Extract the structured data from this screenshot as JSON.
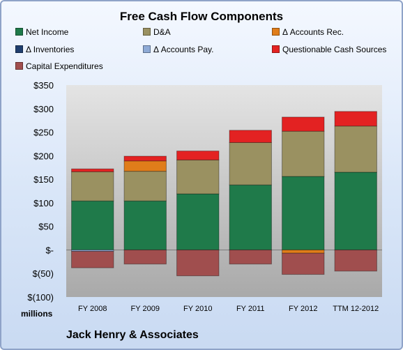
{
  "chart_data": {
    "type": "bar",
    "stacked": true,
    "title": "Free Cash Flow Components",
    "units_label": "millions",
    "categories": [
      "FY 2008",
      "FY 2009",
      "FY 2010",
      "FY 2011",
      "FY 2012",
      "TTM 12-2012"
    ],
    "ylim": [
      -100,
      350
    ],
    "yticks": [
      350,
      300,
      250,
      200,
      150,
      100,
      50,
      0,
      -50,
      -100
    ],
    "ytick_labels": [
      "$350",
      "$300",
      "$250",
      "$200",
      "$150",
      "$100",
      "$50",
      "$-",
      "$(50)",
      "$(100)"
    ],
    "grid": false,
    "legend_position": "top",
    "series": [
      {
        "name": "Net Income",
        "color": "#1f7a4a",
        "values": [
          104,
          104,
          119,
          138,
          156,
          165
        ]
      },
      {
        "name": "D&A",
        "color": "#9a9161",
        "values": [
          62,
          63,
          72,
          90,
          96,
          98
        ]
      },
      {
        "name": "Δ Accounts Rec.",
        "color": "#e07d1a",
        "values": [
          0,
          22,
          0,
          0,
          -7,
          0
        ]
      },
      {
        "name": "Δ Inventories",
        "color": "#1f3e6e",
        "values": [
          0,
          0,
          0,
          0,
          0,
          0
        ]
      },
      {
        "name": "Δ Accounts Pay.",
        "color": "#8eaad6",
        "values": [
          -3,
          0,
          0,
          0,
          0,
          0
        ]
      },
      {
        "name": "Questionable Cash Sources",
        "color": "#e32222",
        "values": [
          6,
          10,
          19,
          26,
          30,
          31
        ]
      },
      {
        "name": "Capital Expenditures",
        "color": "#a04e4e",
        "values": [
          -35,
          -30,
          -55,
          -30,
          -45,
          -45
        ]
      }
    ]
  },
  "footer": {
    "company": "Jack Henry & Associates"
  }
}
